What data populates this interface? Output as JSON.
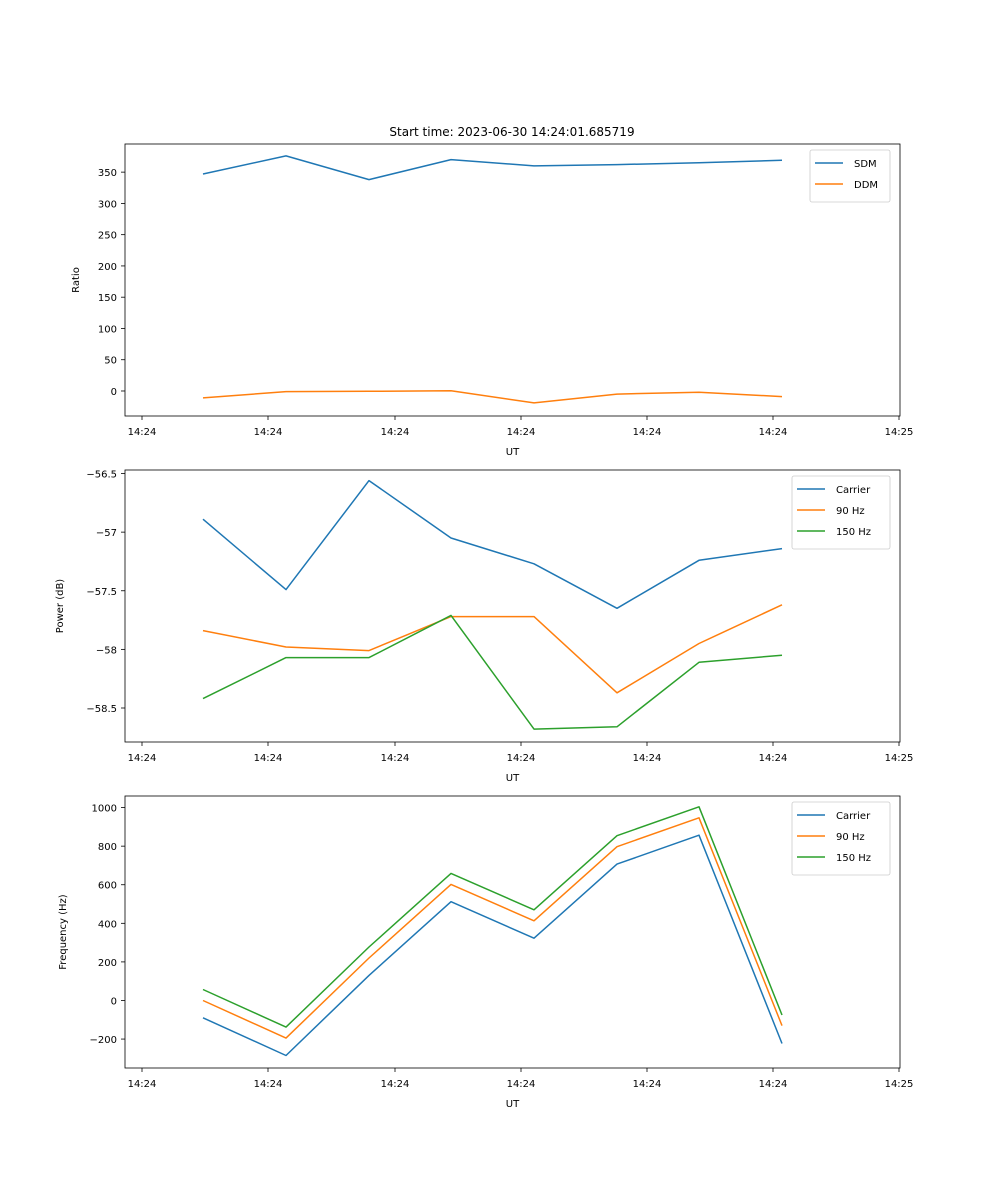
{
  "title": "Start time: 2023-06-30 14:24:01.685719",
  "chart_data": [
    {
      "type": "line",
      "ylabel": "Ratio",
      "xlabel": "UT",
      "x_ticks": [
        "14:24",
        "14:24",
        "14:24",
        "14:24",
        "14:24",
        "14:24",
        "14:25"
      ],
      "yticks": [
        0,
        50,
        100,
        150,
        200,
        250,
        300,
        350
      ],
      "ylim": [
        -40,
        395
      ],
      "legend_position": "upper right",
      "series": [
        {
          "name": "SDM",
          "color": "#1f77b4",
          "values": [
            347,
            376,
            338,
            370,
            360,
            362,
            365,
            369
          ]
        },
        {
          "name": "DDM",
          "color": "#ff7f0e",
          "values": [
            -11,
            -1,
            -0.5,
            0.5,
            -19,
            -5,
            -2,
            -9
          ]
        }
      ]
    },
    {
      "type": "line",
      "ylabel": "Power (dB)",
      "xlabel": "UT",
      "x_ticks": [
        "14:24",
        "14:24",
        "14:24",
        "14:24",
        "14:24",
        "14:24",
        "14:25"
      ],
      "yticks": [
        -56.5,
        -57.0,
        -57.5,
        -58.0,
        -58.5
      ],
      "ylim": [
        -58.79,
        -56.47
      ],
      "legend_position": "upper right",
      "series": [
        {
          "name": "Carrier",
          "color": "#1f77b4",
          "values": [
            -56.89,
            -57.49,
            -56.56,
            -57.05,
            -57.27,
            -57.65,
            -57.24,
            -57.14
          ]
        },
        {
          "name": "90 Hz",
          "color": "#ff7f0e",
          "values": [
            -57.84,
            -57.98,
            -58.01,
            -57.72,
            -57.72,
            -58.37,
            -57.95,
            -57.62
          ]
        },
        {
          "name": "150 Hz",
          "color": "#2ca02c",
          "values": [
            -58.42,
            -58.07,
            -58.07,
            -57.71,
            -58.68,
            -58.66,
            -58.11,
            -58.05
          ]
        }
      ]
    },
    {
      "type": "line",
      "ylabel": "Frequency (Hz)",
      "xlabel": "UT",
      "x_ticks": [
        "14:24",
        "14:24",
        "14:24",
        "14:24",
        "14:24",
        "14:24",
        "14:25"
      ],
      "yticks": [
        -200,
        0,
        200,
        400,
        600,
        800,
        1000
      ],
      "ylim": [
        -350,
        1060
      ],
      "legend_position": "upper right",
      "series": [
        {
          "name": "Carrier",
          "color": "#1f77b4",
          "values": [
            -90,
            -285,
            130,
            512,
            323,
            707,
            857,
            -223
          ]
        },
        {
          "name": "90 Hz",
          "color": "#ff7f0e",
          "values": [
            0,
            -195,
            220,
            602,
            413,
            797,
            947,
            -130
          ]
        },
        {
          "name": "150 Hz",
          "color": "#2ca02c",
          "values": [
            57,
            -138,
            277,
            659,
            470,
            854,
            1004,
            -75
          ]
        }
      ]
    }
  ]
}
